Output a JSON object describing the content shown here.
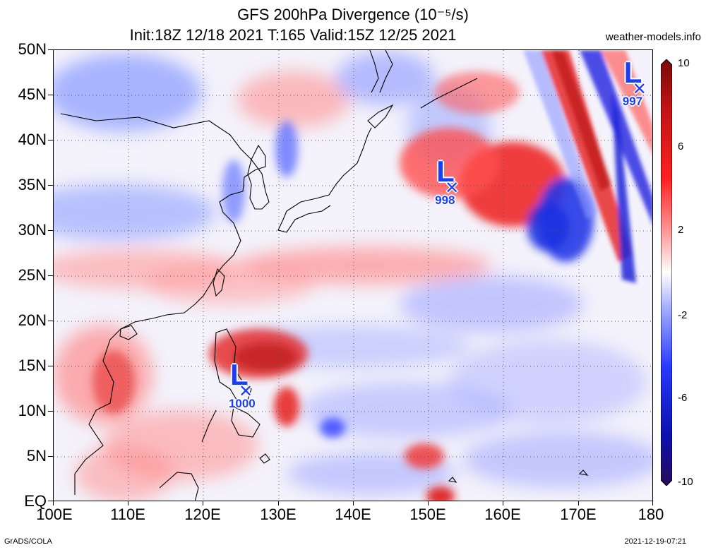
{
  "header": {
    "title_line_1": "GFS 200hPa Divergence (10⁻⁵/s)",
    "title_line_2": "Init:18Z 12/18 2021 T:165 Valid:15Z 12/25 2021",
    "source": "weather-models.info"
  },
  "map": {
    "lat_labels": [
      "50N",
      "45N",
      "40N",
      "35N",
      "30N",
      "25N",
      "20N",
      "15N",
      "10N",
      "5N",
      "EQ"
    ],
    "lon_labels": [
      "100E",
      "110E",
      "120E",
      "130E",
      "140E",
      "150E",
      "160E",
      "170E",
      "180"
    ],
    "lat_range": [
      0,
      50
    ],
    "lon_range": [
      100,
      180
    ],
    "gridlines": "dotted",
    "colors": {
      "strong_positive": "#c0302a",
      "positive": "#ff4040",
      "neutral": "#ffffff",
      "negative": "#5060ff",
      "strong_negative": "#1010d0",
      "system_marker": "#1a3cff"
    }
  },
  "pressure_systems": [
    {
      "letter": "L",
      "value": "1000",
      "lat": 12,
      "lon": 125.5
    },
    {
      "letter": "L",
      "value": "998",
      "lat": 34.5,
      "lon": 153
    },
    {
      "letter": "L",
      "value": "997",
      "lat": 45.5,
      "lon": 178
    }
  ],
  "colorbar": {
    "labels": [
      "10",
      "6",
      "2",
      "-2",
      "-6",
      "-10"
    ],
    "min": -10,
    "max": 10
  },
  "footer": {
    "left": "GrADS/COLA",
    "right": "2021-12-19-07:21"
  }
}
